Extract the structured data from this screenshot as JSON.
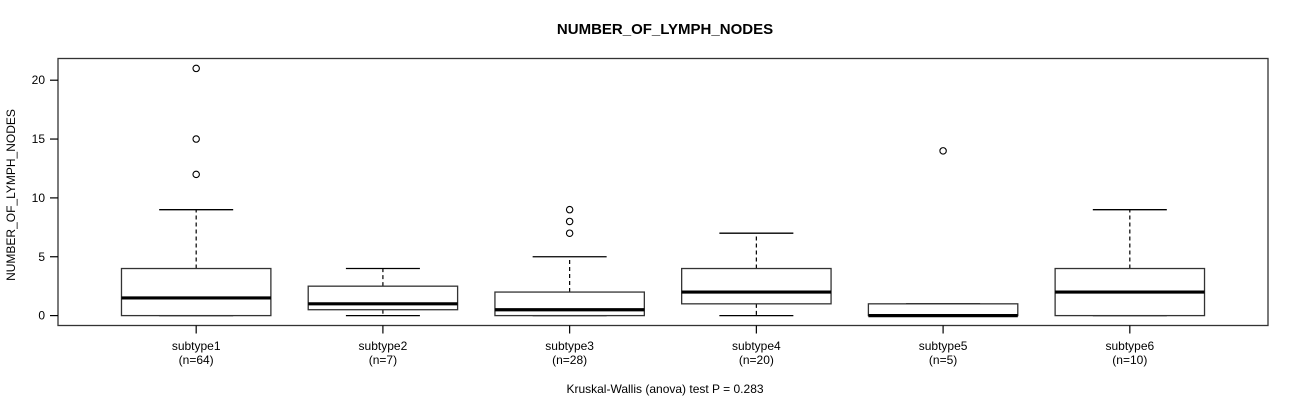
{
  "figure": {
    "title": "NUMBER_OF_LYMPH_NODES",
    "ylabel": "NUMBER_OF_LYMPH_NODES",
    "caption": "Kruskal-Wallis (anova) test P = 0.283"
  },
  "chart_data": {
    "type": "boxplot",
    "title": "NUMBER_OF_LYMPH_NODES",
    "xlabel": "",
    "ylabel": "NUMBER_OF_LYMPH_NODES",
    "caption": "Kruskal-Wallis (anova) test P = 0.283",
    "ylim": [
      -0.85,
      22.1
    ],
    "yticks": [
      0,
      5,
      10,
      15,
      20
    ],
    "grid": false,
    "groups": [
      {
        "label": "subtype1",
        "sublabel": "(n=64)",
        "n": 64,
        "whisker_low": 0,
        "q1": 0,
        "median": 1.5,
        "q3": 4,
        "whisker_high": 9,
        "outliers": [
          12,
          15,
          21
        ]
      },
      {
        "label": "subtype2",
        "sublabel": "(n=7)",
        "n": 7,
        "whisker_low": 0,
        "q1": 0.5,
        "median": 1,
        "q3": 2.5,
        "whisker_high": 4,
        "outliers": []
      },
      {
        "label": "subtype3",
        "sublabel": "(n=28)",
        "n": 28,
        "whisker_low": 0,
        "q1": 0,
        "median": 0.5,
        "q3": 2,
        "whisker_high": 5,
        "outliers": [
          7,
          8,
          9
        ]
      },
      {
        "label": "subtype4",
        "sublabel": "(n=20)",
        "n": 20,
        "whisker_low": 0,
        "q1": 1,
        "median": 2,
        "q3": 4,
        "whisker_high": 7,
        "outliers": []
      },
      {
        "label": "subtype5",
        "sublabel": "(n=5)",
        "n": 5,
        "whisker_low": 0,
        "q1": 0,
        "median": 0,
        "q3": 1,
        "whisker_high": 1,
        "outliers": [
          14
        ]
      },
      {
        "label": "subtype6",
        "sublabel": "(n=10)",
        "n": 10,
        "whisker_low": 0,
        "q1": 0,
        "median": 2,
        "q3": 4,
        "whisker_high": 9,
        "outliers": []
      }
    ],
    "colors": {
      "line": "#000000",
      "frame": "#333333",
      "box_border": "#333333",
      "box_fill": "#ffffff",
      "median": "#000000",
      "background": "#ffffff"
    }
  }
}
